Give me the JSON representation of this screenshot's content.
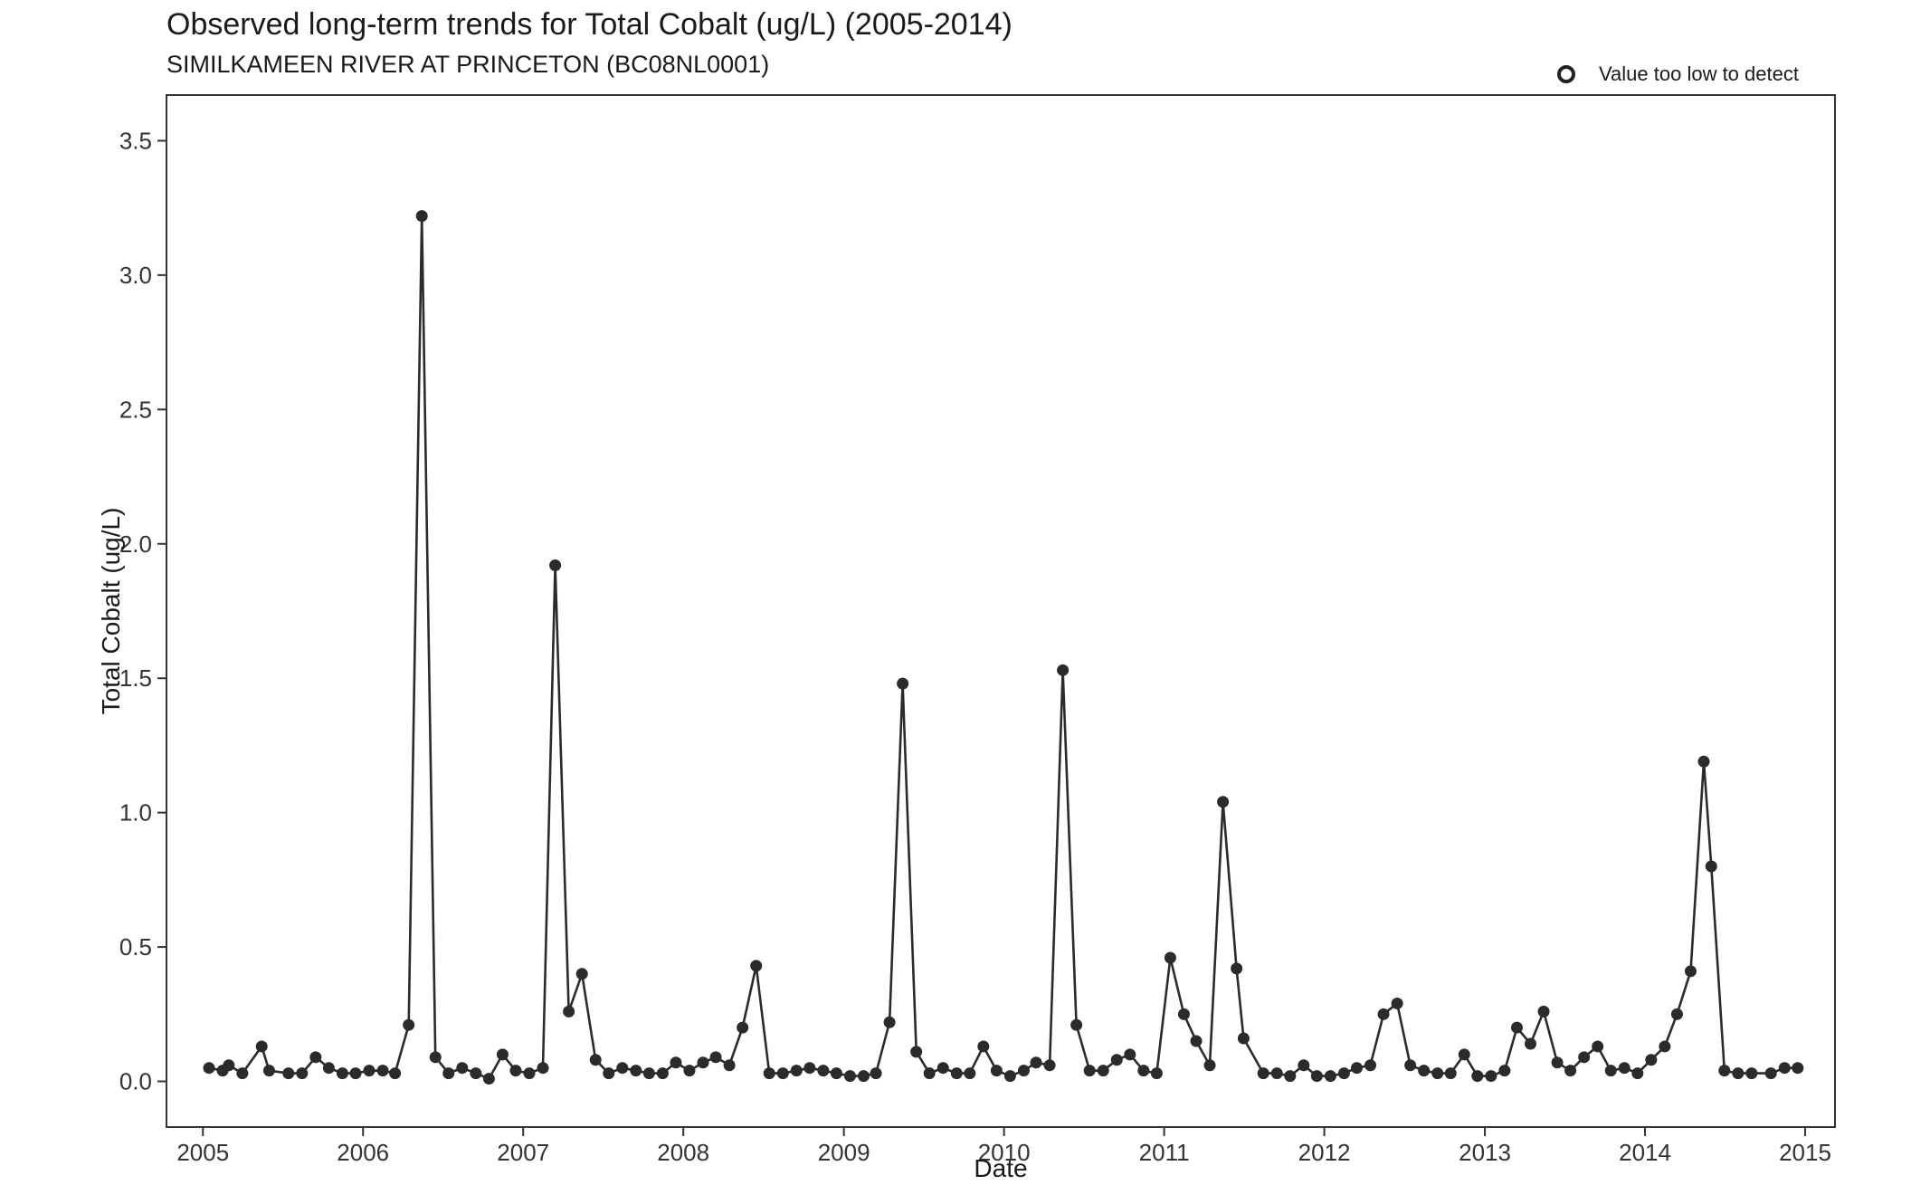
{
  "chart_data": {
    "type": "line",
    "title": "Observed long-term trends for Total Cobalt (ug/L) (2005-2014)",
    "subtitle": "SIMILKAMEEN RIVER AT PRINCETON (BC08NL0001)",
    "xlabel": "Date",
    "ylabel": "Total Cobalt (ug/L)",
    "legend": {
      "position": "top-right",
      "label": "Value too low to detect",
      "symbol": "open-circle"
    },
    "xlim": [
      "2004-10-10",
      "2015-03-10"
    ],
    "ylim": [
      -0.17,
      3.67
    ],
    "x_ticks": [
      "2005",
      "2006",
      "2007",
      "2008",
      "2009",
      "2010",
      "2011",
      "2012",
      "2013",
      "2014",
      "2015"
    ],
    "y_ticks": [
      "0.0",
      "0.5",
      "1.0",
      "1.5",
      "2.0",
      "2.5",
      "3.0",
      "3.5"
    ],
    "grid": false,
    "series": [
      {
        "marker": "filled-circle",
        "color": "#2b2b2b",
        "points": [
          [
            "2005-01-15",
            0.05
          ],
          [
            "2005-02-15",
            0.04
          ],
          [
            "2005-03-01",
            0.06
          ],
          [
            "2005-04-01",
            0.03
          ],
          [
            "2005-05-15",
            0.13
          ],
          [
            "2005-06-01",
            0.04
          ],
          [
            "2005-07-15",
            0.03
          ],
          [
            "2005-08-15",
            0.03
          ],
          [
            "2005-09-15",
            0.09
          ],
          [
            "2005-10-15",
            0.05
          ],
          [
            "2005-11-15",
            0.03
          ],
          [
            "2005-12-15",
            0.03
          ],
          [
            "2006-01-15",
            0.04
          ],
          [
            "2006-02-15",
            0.04
          ],
          [
            "2006-03-15",
            0.03
          ],
          [
            "2006-04-15",
            0.21
          ],
          [
            "2006-05-15",
            3.22
          ],
          [
            "2006-06-15",
            0.09
          ],
          [
            "2006-07-15",
            0.03
          ],
          [
            "2006-08-15",
            0.05
          ],
          [
            "2006-09-15",
            0.03
          ],
          [
            "2006-10-15",
            0.01
          ],
          [
            "2006-11-15",
            0.1
          ],
          [
            "2006-12-15",
            0.04
          ],
          [
            "2007-01-15",
            0.03
          ],
          [
            "2007-02-15",
            0.05
          ],
          [
            "2007-03-15",
            1.92
          ],
          [
            "2007-04-15",
            0.26
          ],
          [
            "2007-05-15",
            0.4
          ],
          [
            "2007-06-15",
            0.08
          ],
          [
            "2007-07-15",
            0.03
          ],
          [
            "2007-08-15",
            0.05
          ],
          [
            "2007-09-15",
            0.04
          ],
          [
            "2007-10-15",
            0.03
          ],
          [
            "2007-11-15",
            0.03
          ],
          [
            "2007-12-15",
            0.07
          ],
          [
            "2008-01-15",
            0.04
          ],
          [
            "2008-02-15",
            0.07
          ],
          [
            "2008-03-15",
            0.09
          ],
          [
            "2008-04-15",
            0.06
          ],
          [
            "2008-05-15",
            0.2
          ],
          [
            "2008-06-15",
            0.43
          ],
          [
            "2008-07-15",
            0.03
          ],
          [
            "2008-08-15",
            0.03
          ],
          [
            "2008-09-15",
            0.04
          ],
          [
            "2008-10-15",
            0.05
          ],
          [
            "2008-11-15",
            0.04
          ],
          [
            "2008-12-15",
            0.03
          ],
          [
            "2009-01-15",
            0.02
          ],
          [
            "2009-02-15",
            0.02
          ],
          [
            "2009-03-15",
            0.03
          ],
          [
            "2009-04-15",
            0.22
          ],
          [
            "2009-05-15",
            1.48
          ],
          [
            "2009-06-15",
            0.11
          ],
          [
            "2009-07-15",
            0.03
          ],
          [
            "2009-08-15",
            0.05
          ],
          [
            "2009-09-15",
            0.03
          ],
          [
            "2009-10-15",
            0.03
          ],
          [
            "2009-11-15",
            0.13
          ],
          [
            "2009-12-15",
            0.04
          ],
          [
            "2010-01-15",
            0.02
          ],
          [
            "2010-02-15",
            0.04
          ],
          [
            "2010-03-15",
            0.07
          ],
          [
            "2010-04-15",
            0.06
          ],
          [
            "2010-05-15",
            1.53
          ],
          [
            "2010-06-15",
            0.21
          ],
          [
            "2010-07-15",
            0.04
          ],
          [
            "2010-08-15",
            0.04
          ],
          [
            "2010-09-15",
            0.08
          ],
          [
            "2010-10-15",
            0.1
          ],
          [
            "2010-11-15",
            0.04
          ],
          [
            "2010-12-15",
            0.03
          ],
          [
            "2011-01-15",
            0.46
          ],
          [
            "2011-02-15",
            0.25
          ],
          [
            "2011-03-15",
            0.15
          ],
          [
            "2011-04-15",
            0.06
          ],
          [
            "2011-05-15",
            1.04
          ],
          [
            "2011-06-15",
            0.42
          ],
          [
            "2011-07-01",
            0.16
          ],
          [
            "2011-08-15",
            0.03
          ],
          [
            "2011-09-15",
            0.03
          ],
          [
            "2011-10-15",
            0.02
          ],
          [
            "2011-11-15",
            0.06
          ],
          [
            "2011-12-15",
            0.02
          ],
          [
            "2012-01-15",
            0.02
          ],
          [
            "2012-02-15",
            0.03
          ],
          [
            "2012-03-15",
            0.05
          ],
          [
            "2012-04-15",
            0.06
          ],
          [
            "2012-05-15",
            0.25
          ],
          [
            "2012-06-15",
            0.29
          ],
          [
            "2012-07-15",
            0.06
          ],
          [
            "2012-08-15",
            0.04
          ],
          [
            "2012-09-15",
            0.03
          ],
          [
            "2012-10-15",
            0.03
          ],
          [
            "2012-11-15",
            0.1
          ],
          [
            "2012-12-15",
            0.02
          ],
          [
            "2013-01-15",
            0.02
          ],
          [
            "2013-02-15",
            0.04
          ],
          [
            "2013-03-15",
            0.2
          ],
          [
            "2013-04-15",
            0.14
          ],
          [
            "2013-05-15",
            0.26
          ],
          [
            "2013-06-15",
            0.07
          ],
          [
            "2013-07-15",
            0.04
          ],
          [
            "2013-08-15",
            0.09
          ],
          [
            "2013-09-15",
            0.13
          ],
          [
            "2013-10-15",
            0.04
          ],
          [
            "2013-11-15",
            0.05
          ],
          [
            "2013-12-15",
            0.03
          ],
          [
            "2014-01-15",
            0.08
          ],
          [
            "2014-02-15",
            0.13
          ],
          [
            "2014-03-15",
            0.25
          ],
          [
            "2014-04-15",
            0.41
          ],
          [
            "2014-05-15",
            1.19
          ],
          [
            "2014-06-01",
            0.8
          ],
          [
            "2014-07-01",
            0.04
          ],
          [
            "2014-08-01",
            0.03
          ],
          [
            "2014-09-01",
            0.03
          ],
          [
            "2014-10-15",
            0.03
          ],
          [
            "2014-11-15",
            0.05
          ],
          [
            "2014-12-15",
            0.05
          ]
        ]
      }
    ]
  }
}
